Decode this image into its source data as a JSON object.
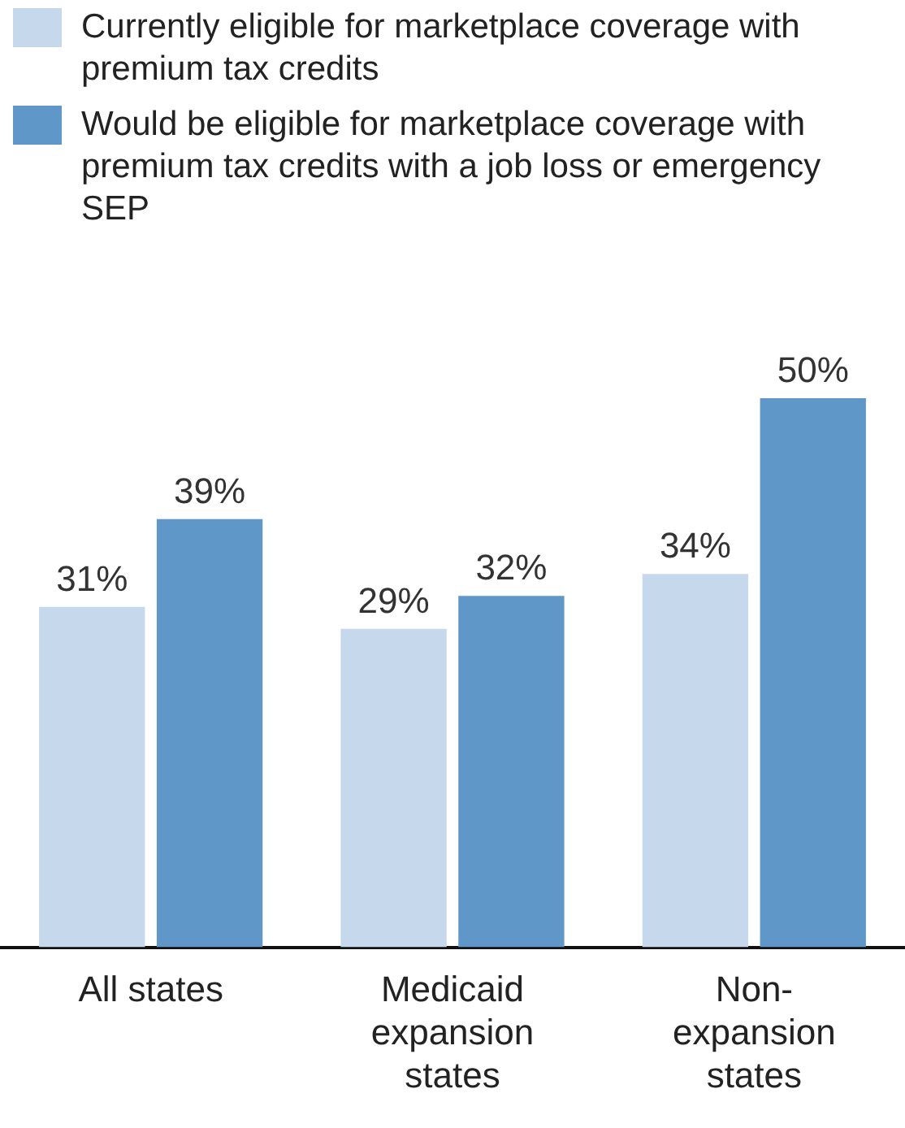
{
  "chart_data": {
    "type": "bar",
    "categories": [
      "All states",
      "Medicaid expansion states",
      "Non-expansion states"
    ],
    "series": [
      {
        "name": "Currently eligible for marketplace coverage with premium tax credits",
        "color": "#c6d9ec",
        "values": [
          31,
          29,
          34
        ],
        "value_labels": [
          "31%",
          "29%",
          "34%"
        ]
      },
      {
        "name": "Would be eligible for marketplace coverage with premium tax credits with a job loss or emergency SEP",
        "color": "#5f97c9",
        "values": [
          39,
          32,
          50
        ],
        "value_labels": [
          "39%",
          "32%",
          "50%"
        ]
      }
    ],
    "tick_labels": "x",
    "legend": "top left",
    "grid": false
  }
}
